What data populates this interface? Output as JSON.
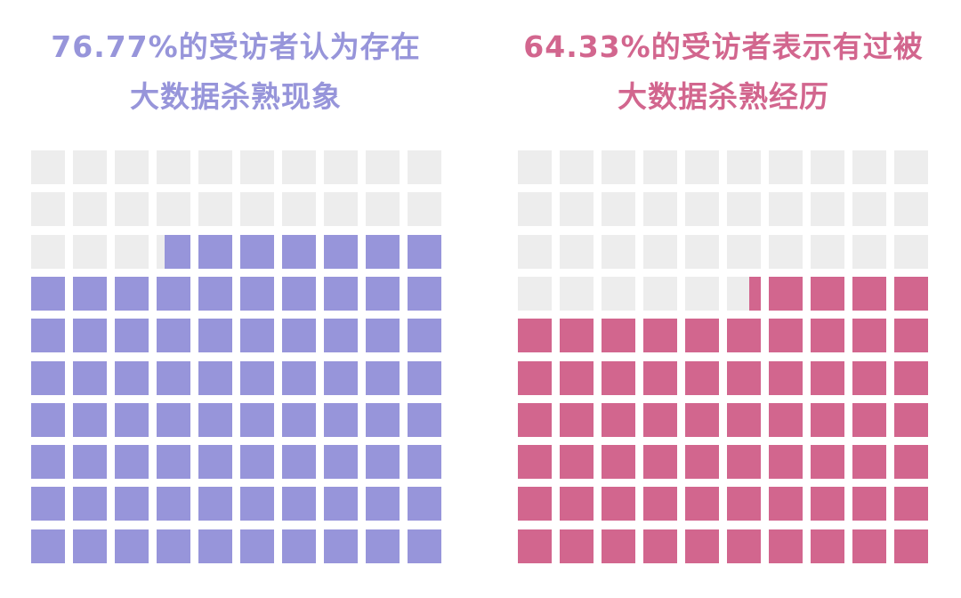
{
  "chart_data": [
    {
      "type": "waffle",
      "title_line1": "76.77%的受访者认为存在",
      "title_line2": "大数据杀熟现象",
      "value_percent": 76.77,
      "grid": [
        10,
        10
      ],
      "fill_order": "bottom-right to top-left",
      "color": "#9795da",
      "empty_color": "#ededed"
    },
    {
      "type": "waffle",
      "title_line1": "64.33%的受访者表示有过被",
      "title_line2": "大数据杀熟经历",
      "value_percent": 64.33,
      "grid": [
        10,
        10
      ],
      "fill_order": "bottom-right to top-left",
      "color": "#d2668e",
      "empty_color": "#ededed"
    }
  ]
}
